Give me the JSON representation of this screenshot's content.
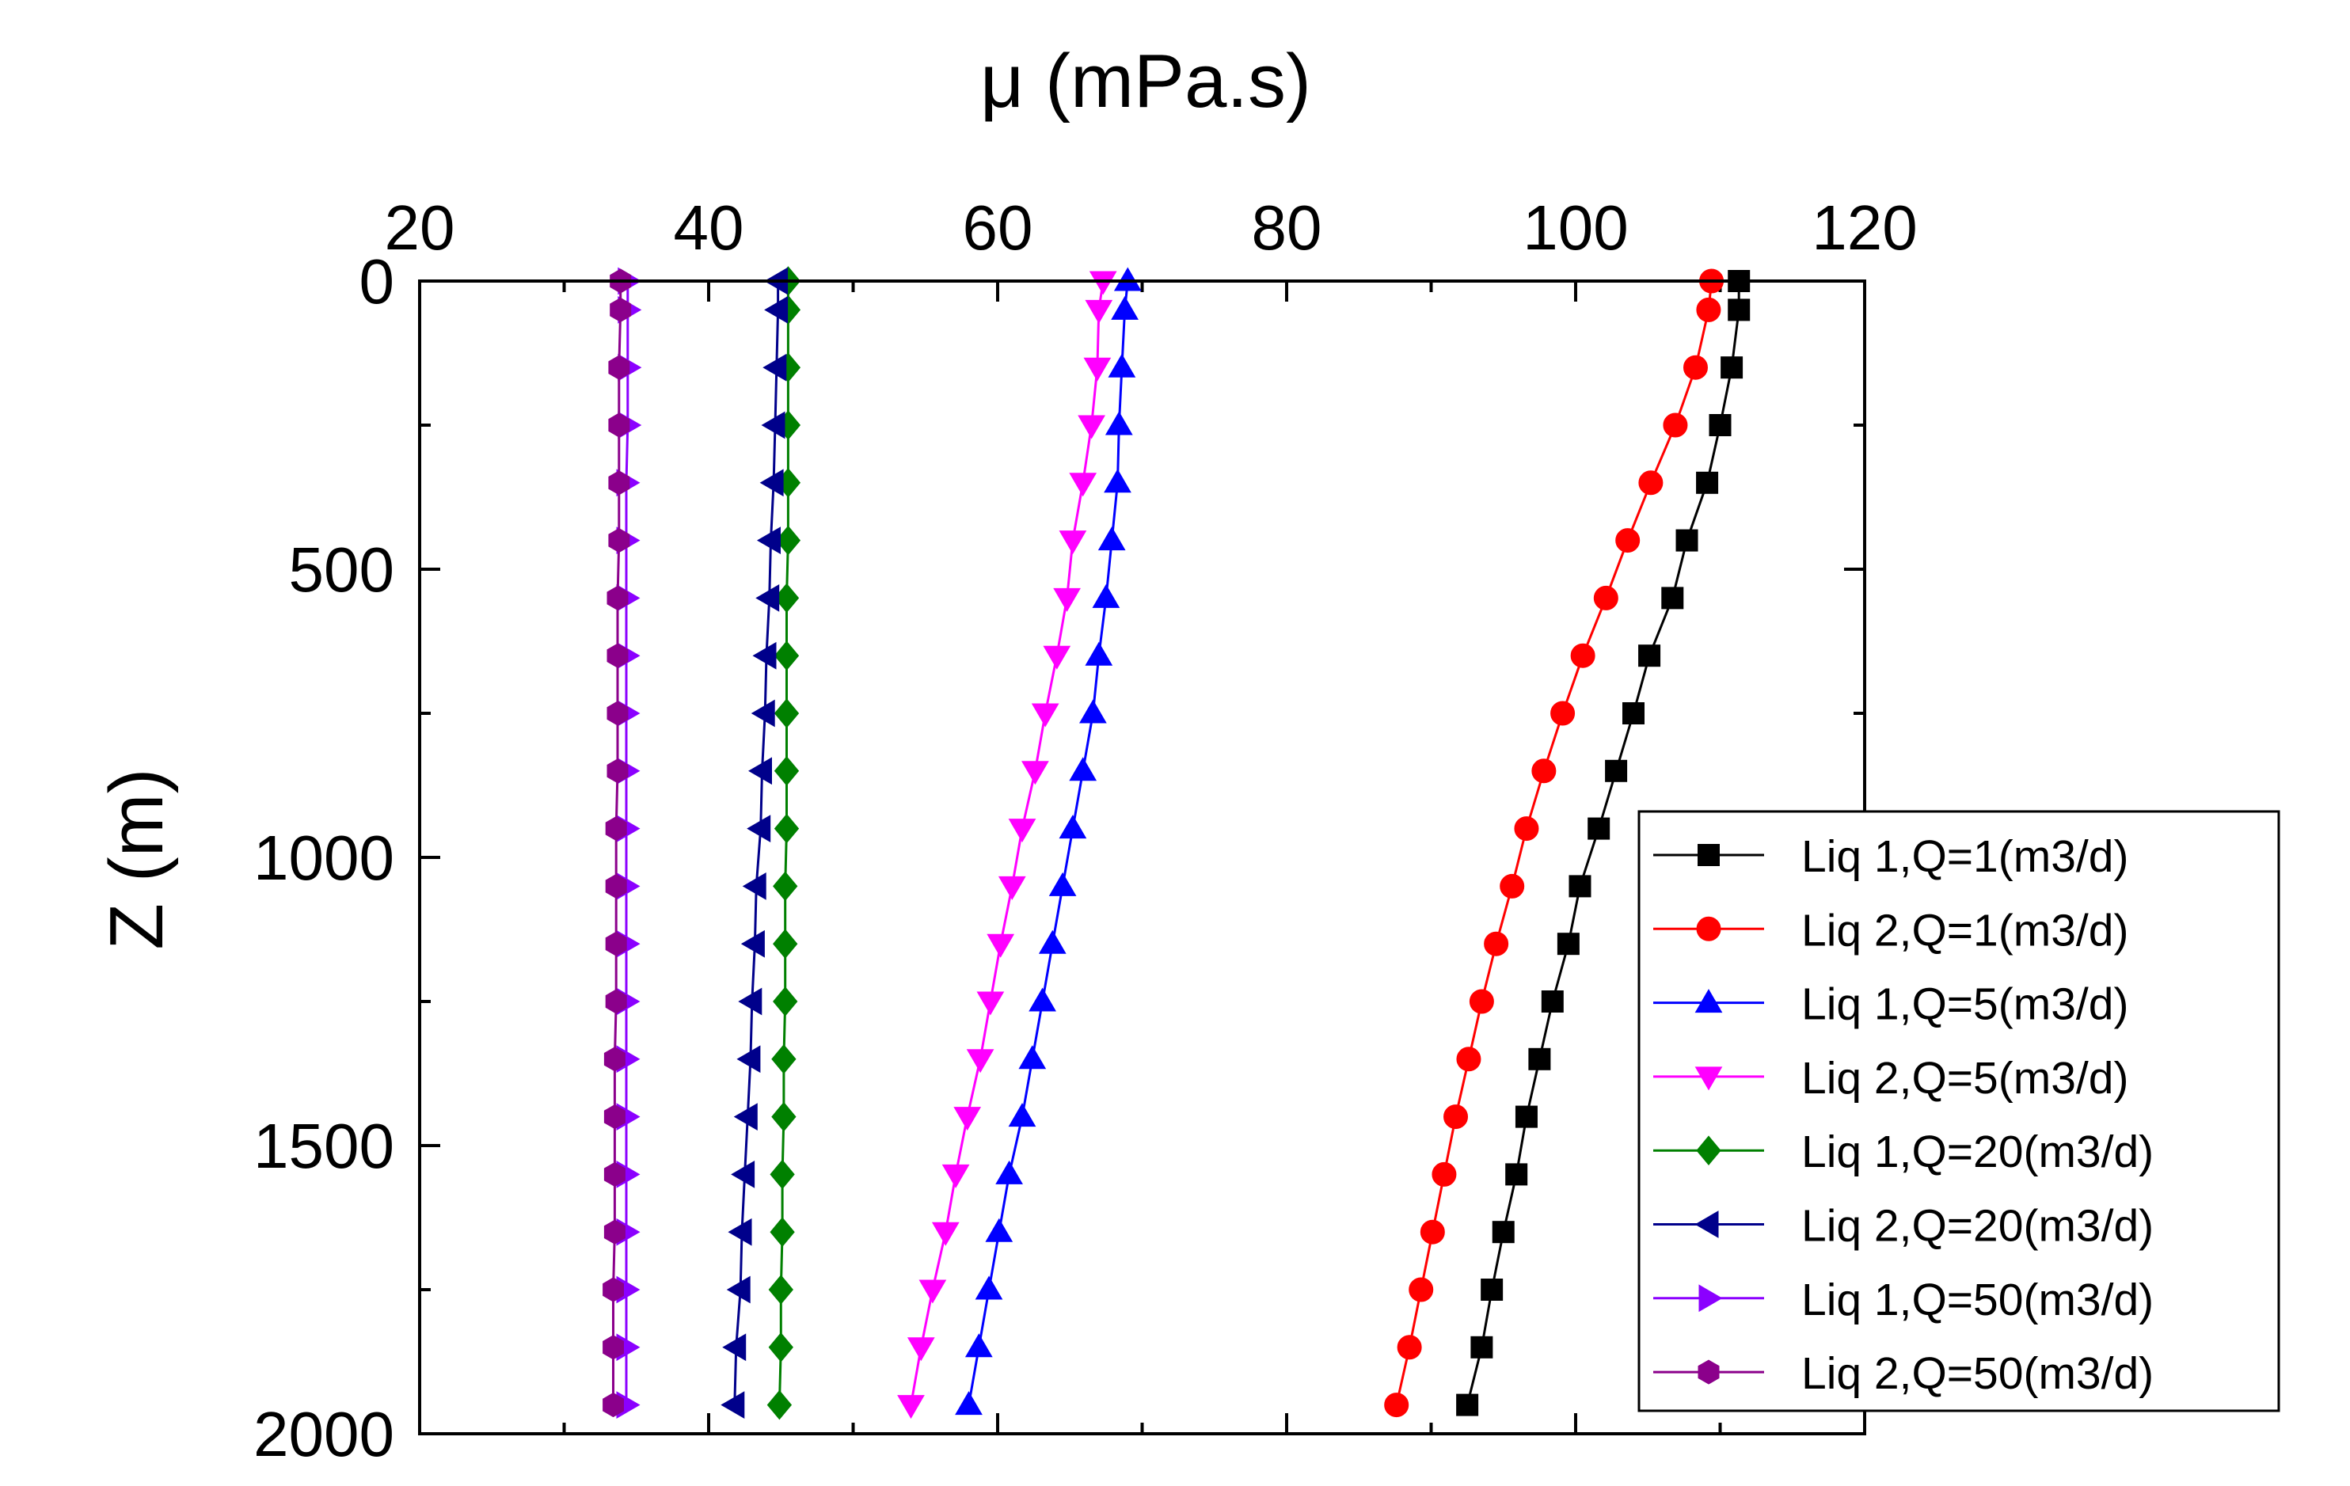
{
  "chart_data": {
    "type": "line",
    "title": "",
    "xlabel": "μ (mPa.s)",
    "ylabel": "Z (m)",
    "xlim": [
      20,
      120
    ],
    "ylim": [
      0,
      2000
    ],
    "y_inverted": true,
    "x_axis_position": "top",
    "x_ticks": [
      20,
      40,
      60,
      80,
      100,
      120
    ],
    "y_ticks": [
      0,
      500,
      1000,
      1500,
      2000
    ],
    "x_tick_labels": [
      "20",
      "40",
      "60",
      "80",
      "100",
      "120"
    ],
    "y_tick_labels": [
      "0",
      "500",
      "1000",
      "1500",
      "2000"
    ],
    "grid": false,
    "legend_position": "bottom-right",
    "z": [
      0,
      50,
      150,
      250,
      350,
      450,
      550,
      650,
      750,
      850,
      950,
      1050,
      1150,
      1250,
      1350,
      1450,
      1550,
      1650,
      1750,
      1850,
      1950
    ],
    "series": [
      {
        "name": "Liq 1,Q=1(m3/d)",
        "color": "#000000",
        "marker": "square",
        "values": [
          111.3,
          111.3,
          110.8,
          110.0,
          109.1,
          107.7,
          106.7,
          105.1,
          104.0,
          102.8,
          101.6,
          100.3,
          99.5,
          98.4,
          97.5,
          96.6,
          95.9,
          95.0,
          94.2,
          93.5,
          92.5
        ]
      },
      {
        "name": "Liq 2,Q=1(m3/d)",
        "color": "#ff0000",
        "marker": "circle",
        "values": [
          109.4,
          109.2,
          108.3,
          106.9,
          105.2,
          103.6,
          102.1,
          100.5,
          99.1,
          97.8,
          96.6,
          95.6,
          94.5,
          93.5,
          92.6,
          91.7,
          90.9,
          90.1,
          89.3,
          88.5,
          87.6
        ]
      },
      {
        "name": "Liq 1,Q=5(m3/d)",
        "color": "#0000ff",
        "marker": "triangle-up",
        "values": [
          69.0,
          68.8,
          68.6,
          68.4,
          68.3,
          67.9,
          67.5,
          67.0,
          66.6,
          65.9,
          65.2,
          64.5,
          63.8,
          63.1,
          62.4,
          61.7,
          60.8,
          60.1,
          59.4,
          58.7,
          58.0
        ]
      },
      {
        "name": "Liq 2,Q=5(m3/d)",
        "color": "#ff00ff",
        "marker": "triangle-down",
        "values": [
          67.3,
          67.0,
          66.9,
          66.5,
          65.9,
          65.2,
          64.8,
          64.1,
          63.3,
          62.6,
          61.7,
          61.0,
          60.2,
          59.5,
          58.8,
          57.9,
          57.1,
          56.4,
          55.5,
          54.7,
          54.0
        ]
      },
      {
        "name": "Liq 1,Q=20(m3/d)",
        "color": "#008000",
        "marker": "diamond",
        "values": [
          45.5,
          45.5,
          45.5,
          45.5,
          45.5,
          45.5,
          45.4,
          45.4,
          45.4,
          45.4,
          45.4,
          45.3,
          45.3,
          45.3,
          45.2,
          45.2,
          45.1,
          45.1,
          45.0,
          45.0,
          44.9
        ]
      },
      {
        "name": "Liq 2,Q=20(m3/d)",
        "color": "#00008b",
        "marker": "triangle-left",
        "values": [
          44.8,
          44.8,
          44.7,
          44.6,
          44.5,
          44.3,
          44.2,
          44.0,
          43.9,
          43.7,
          43.6,
          43.3,
          43.2,
          43.0,
          42.9,
          42.7,
          42.5,
          42.3,
          42.2,
          41.9,
          41.8
        ]
      },
      {
        "name": "Liq 1,Q=50(m3/d)",
        "color": "#8b00ff",
        "marker": "triangle-right",
        "values": [
          34.4,
          34.4,
          34.4,
          34.4,
          34.3,
          34.3,
          34.3,
          34.3,
          34.3,
          34.3,
          34.3,
          34.3,
          34.3,
          34.3,
          34.3,
          34.3,
          34.3,
          34.3,
          34.3,
          34.3,
          34.3
        ]
      },
      {
        "name": "Liq 2,Q=50(m3/d)",
        "color": "#8b008b",
        "marker": "hexagon",
        "values": [
          33.9,
          33.9,
          33.8,
          33.8,
          33.8,
          33.8,
          33.7,
          33.7,
          33.7,
          33.7,
          33.6,
          33.6,
          33.6,
          33.6,
          33.5,
          33.5,
          33.5,
          33.5,
          33.4,
          33.4,
          33.4
        ]
      }
    ]
  }
}
